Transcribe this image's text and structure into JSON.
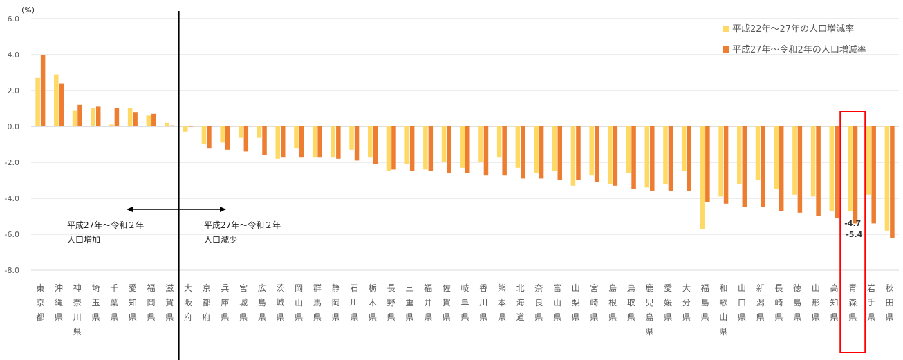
{
  "chart_data": {
    "type": "bar",
    "y_unit": "(%)",
    "ylim": [
      -8,
      6
    ],
    "yticks": [
      "6.0",
      "4.0",
      "2.0",
      "0.0",
      "-2.0",
      "-4.0",
      "-6.0",
      "-8.0"
    ],
    "grid": true,
    "legend_position": "top-right",
    "categories": [
      "東京都",
      "沖縄県",
      "神奈川県",
      "埼玉県",
      "千葉県",
      "愛知県",
      "福岡県",
      "滋賀県",
      "大阪府",
      "京都府",
      "兵庫県",
      "宮城県",
      "広島県",
      "茨城県",
      "岡山県",
      "群馬県",
      "静岡県",
      "石川県",
      "栃木県",
      "長野県",
      "三重県",
      "福井県",
      "佐賀県",
      "岐阜県",
      "香川県",
      "熊本県",
      "北海道",
      "奈良県",
      "富山県",
      "山梨県",
      "宮崎県",
      "島根県",
      "鳥取県",
      "鹿児島県",
      "愛媛県",
      "大分県",
      "福島県",
      "和歌山県",
      "山口県",
      "新潟県",
      "長崎県",
      "徳島県",
      "山形県",
      "高知県",
      "青森県",
      "岩手県",
      "秋田県"
    ],
    "series": [
      {
        "name": "平成22年～27年の人口増減率",
        "color": "#FFD966",
        "values": [
          2.7,
          2.9,
          0.9,
          1.0,
          0.1,
          1.0,
          0.6,
          0.2,
          -0.3,
          -1.0,
          -0.9,
          -0.6,
          -0.6,
          -1.8,
          -1.2,
          -1.7,
          -1.7,
          -1.3,
          -1.7,
          -2.5,
          -2.1,
          -2.4,
          -2.0,
          -2.3,
          -2.0,
          -1.7,
          -2.3,
          -2.6,
          -2.5,
          -3.3,
          -2.7,
          -3.2,
          -2.6,
          -3.4,
          -3.2,
          -2.5,
          -5.7,
          -3.9,
          -3.2,
          -3.0,
          -3.5,
          -3.8,
          -3.9,
          -4.7,
          -4.7,
          -3.8,
          -5.8
        ]
      },
      {
        "name": "平成27年～令和2年の人口増減率",
        "color": "#ED7D31",
        "values": [
          4.0,
          2.4,
          1.2,
          1.1,
          1.0,
          0.8,
          0.7,
          0.05,
          0.0,
          -1.2,
          -1.3,
          -1.4,
          -1.6,
          -1.7,
          -1.7,
          -1.7,
          -1.8,
          -1.9,
          -2.1,
          -2.4,
          -2.5,
          -2.5,
          -2.6,
          -2.6,
          -2.7,
          -2.7,
          -2.9,
          -2.9,
          -3.0,
          -3.0,
          -3.1,
          -3.3,
          -3.5,
          -3.6,
          -3.6,
          -3.6,
          -4.2,
          -4.3,
          -4.5,
          -4.5,
          -4.7,
          -4.8,
          -5.0,
          -5.1,
          -5.4,
          -5.4,
          -6.2
        ]
      }
    ],
    "data_labels": {
      "category": "青森県",
      "values": [
        "-4.7",
        "-5.4"
      ]
    },
    "annotations": {
      "increase": [
        "平成27年～令和２年",
        "人口増加"
      ],
      "decrease": [
        "平成27年～令和２年",
        "人口減少"
      ]
    }
  }
}
